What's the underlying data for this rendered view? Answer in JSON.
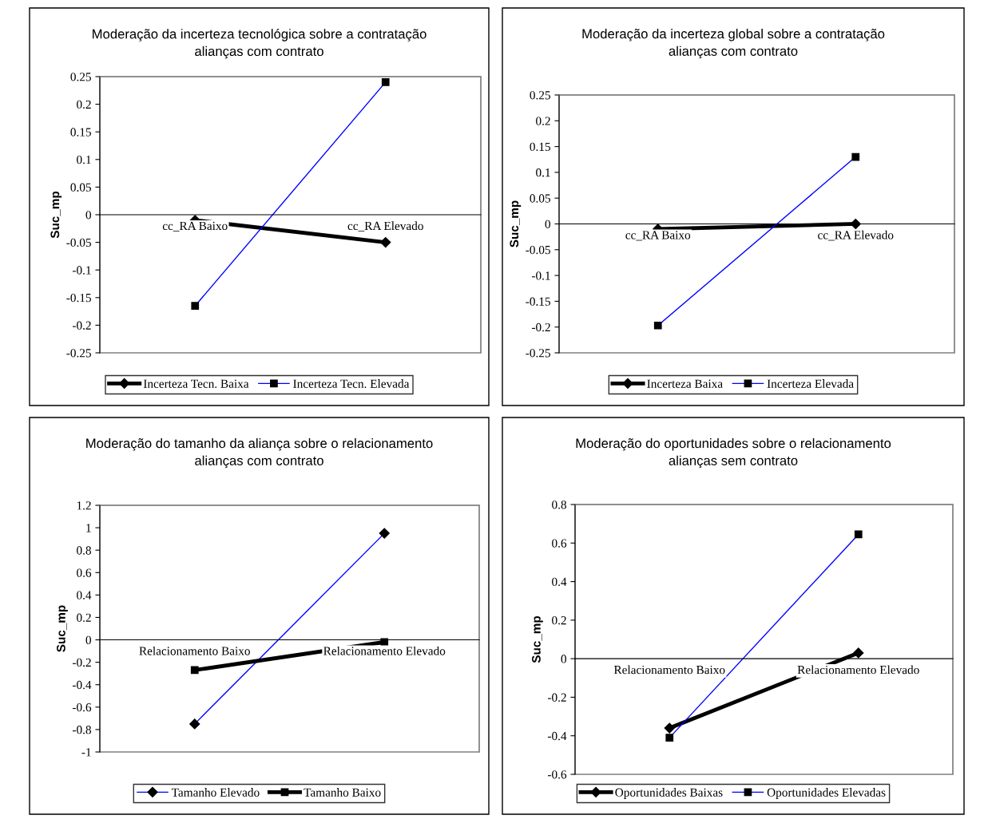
{
  "chart_data": [
    {
      "type": "line",
      "title": "Moderação da incerteza tecnológica sobre a contratação\nalianças com contrato",
      "ylabel": "Suc_mp",
      "categories": [
        "cc_RA Baixo",
        "cc_RA Elevado"
      ],
      "ylim": [
        -0.25,
        0.25
      ],
      "yticks": [
        -0.25,
        -0.2,
        -0.15,
        -0.1,
        -0.05,
        0,
        0.05,
        0.1,
        0.15,
        0.2,
        0.25
      ],
      "legend": "bottom",
      "grid": false,
      "series": [
        {
          "name": "Incerteza Tecn. Baixa",
          "color": "#000000",
          "marker": "diamond",
          "values": [
            -0.01,
            -0.05
          ]
        },
        {
          "name": "Incerteza Tecn. Elevada",
          "color": "#0000ff",
          "marker": "square",
          "values": [
            -0.165,
            0.24
          ]
        }
      ]
    },
    {
      "type": "line",
      "title": "Moderação da incerteza global sobre a contratação\nalianças com contrato",
      "ylabel": "Suc_mp",
      "categories": [
        "cc_RA Baixo",
        "cc_RA Elevado"
      ],
      "ylim": [
        -0.25,
        0.25
      ],
      "yticks": [
        -0.25,
        -0.2,
        -0.15,
        -0.1,
        -0.05,
        0,
        0.05,
        0.1,
        0.15,
        0.2,
        0.25
      ],
      "legend": "bottom",
      "grid": false,
      "series": [
        {
          "name": "Incerteza Baixa",
          "color": "#000000",
          "marker": "diamond",
          "values": [
            -0.01,
            0.0
          ]
        },
        {
          "name": "Incerteza Elevada",
          "color": "#0000ff",
          "marker": "square",
          "values": [
            -0.197,
            0.13
          ]
        }
      ]
    },
    {
      "type": "line",
      "title": "Moderação do tamanho da aliança sobre o relacionamento\nalianças com contrato",
      "ylabel": "Suc_mp",
      "categories": [
        "Relacionamento Baixo",
        "Relacionamento Elevado"
      ],
      "ylim": [
        -1,
        1.2
      ],
      "yticks": [
        -1,
        -0.8,
        -0.6,
        -0.4,
        -0.2,
        0,
        0.2,
        0.4,
        0.6,
        0.8,
        1,
        1.2
      ],
      "legend": "bottom",
      "grid": false,
      "series": [
        {
          "name": "Tamanho Elevado",
          "color": "#0000ff",
          "marker": "diamond",
          "values": [
            -0.75,
            0.95
          ]
        },
        {
          "name": "Tamanho Baixo",
          "color": "#000000",
          "marker": "square",
          "values": [
            -0.27,
            -0.02
          ]
        }
      ]
    },
    {
      "type": "line",
      "title": "Moderação do oportunidades sobre o relacionamento\nalianças sem contrato",
      "ylabel": "Suc_mp",
      "categories": [
        "Relacionamento Baixo",
        "Relacionamento Elevado"
      ],
      "ylim": [
        -0.6,
        0.8
      ],
      "yticks": [
        -0.6,
        -0.4,
        -0.2,
        0,
        0.2,
        0.4,
        0.6,
        0.8
      ],
      "legend": "bottom",
      "grid": false,
      "series": [
        {
          "name": "Oportunidades Baixas",
          "color": "#000000",
          "marker": "diamond",
          "values": [
            -0.36,
            0.03
          ]
        },
        {
          "name": "Oportunidades Elevadas",
          "color": "#0000ff",
          "marker": "square",
          "values": [
            -0.41,
            0.645
          ]
        }
      ]
    }
  ]
}
